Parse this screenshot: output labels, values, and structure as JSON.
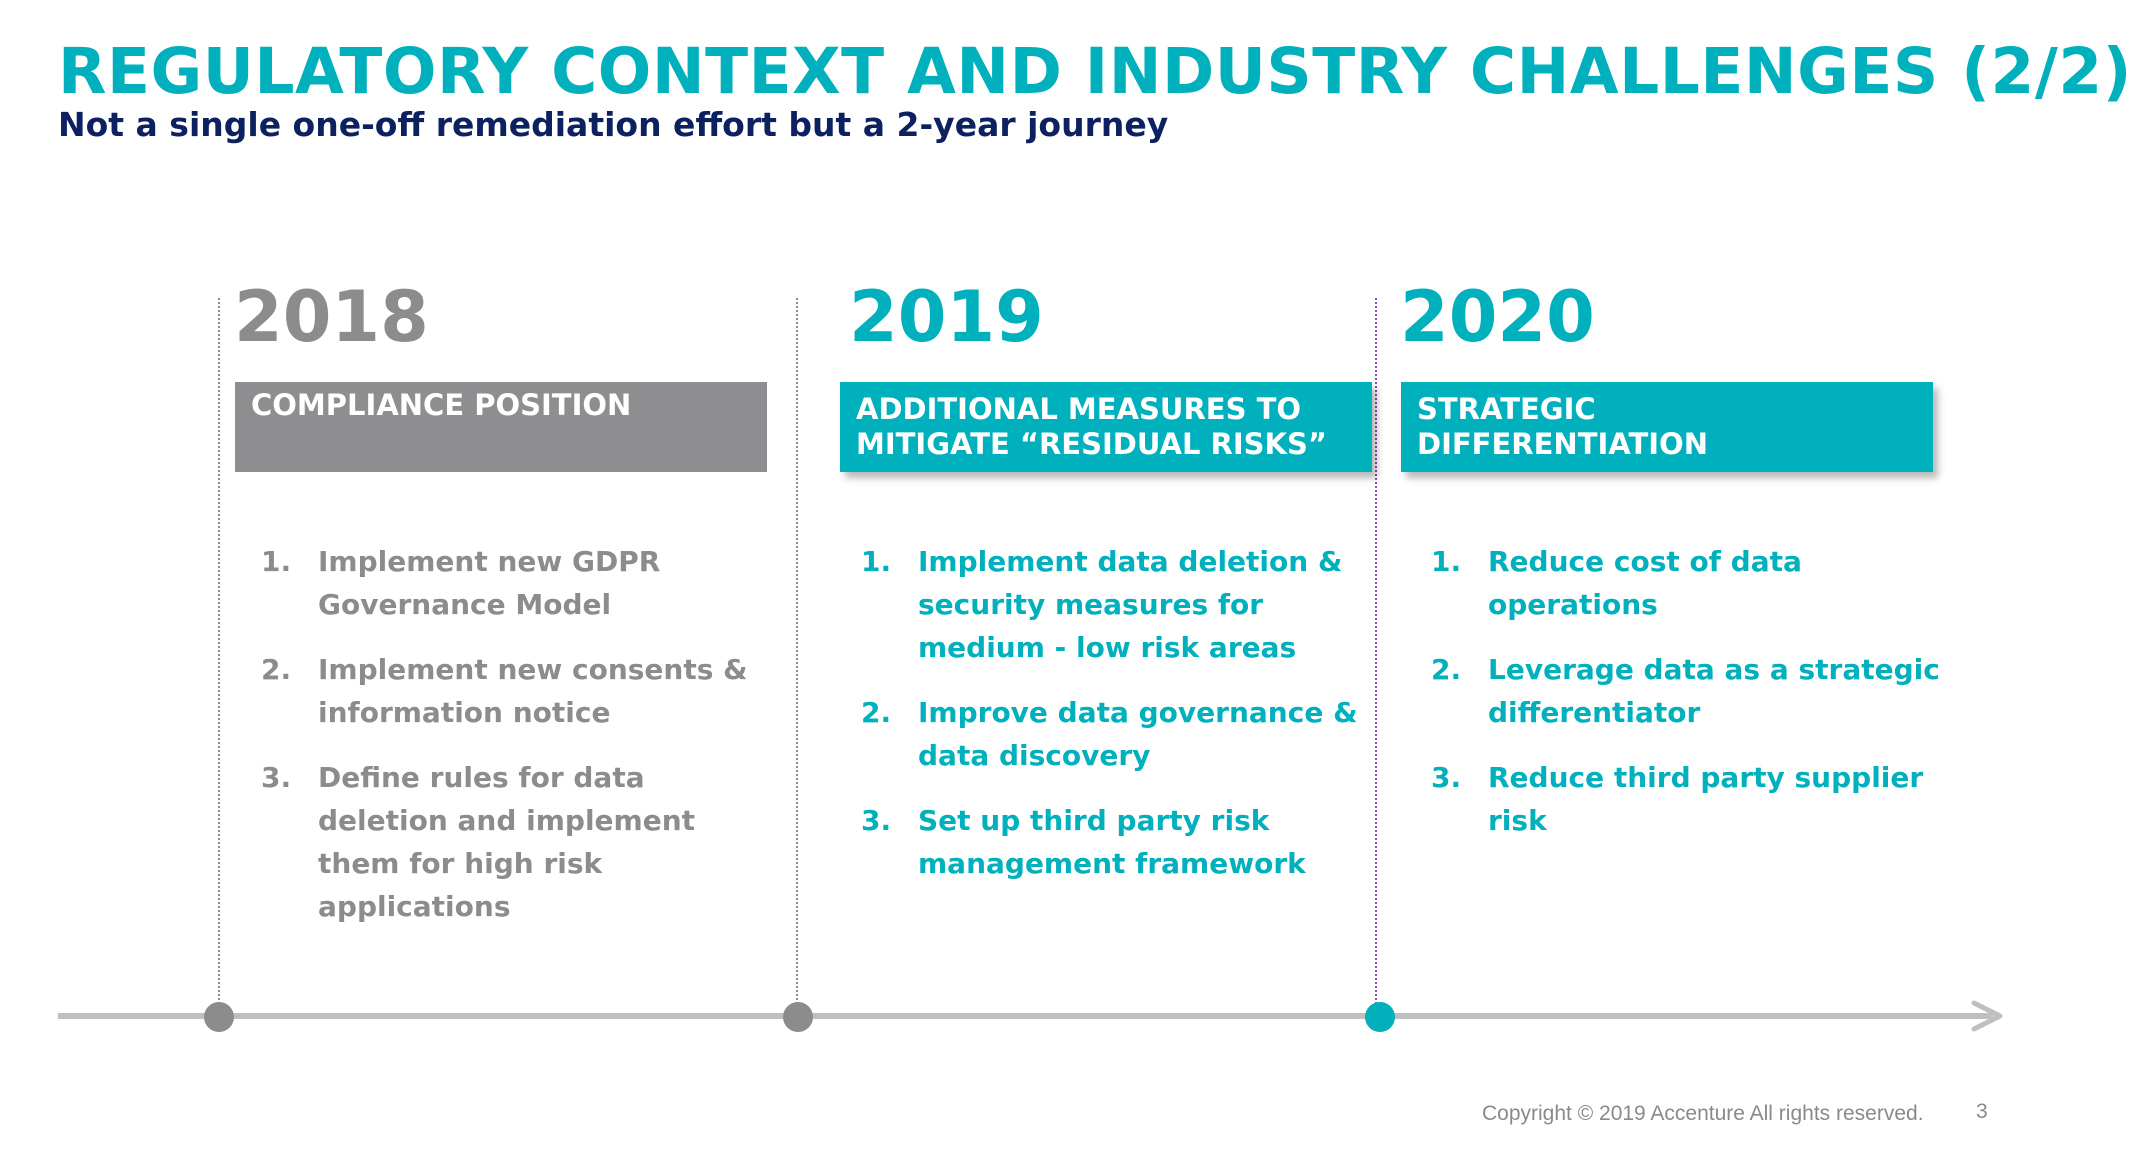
{
  "slide": {
    "title": "REGULATORY CONTEXT AND INDUSTRY CHALLENGES (2/2)",
    "subtitle": "Not a single one-off remediation effort but a 2-year journey"
  },
  "colors": {
    "teal": "#00b1bd",
    "navy": "#0d2160",
    "gray": "#8c8c8c",
    "gray_box": "#8e8e90",
    "timeline": "#bfbfbf",
    "purple_line": "#8a4cc8"
  },
  "columns": [
    {
      "year": "2018",
      "heading_lines": [
        "COMPLIANCE POSITION"
      ],
      "items": [
        {
          "num": "1.",
          "text": "Implement new GDPR Governance Model"
        },
        {
          "num": "2.",
          "text": "Implement new consents & information notice"
        },
        {
          "num": "3.",
          "text": "Define rules for data deletion and implement them for high risk applications"
        }
      ]
    },
    {
      "year": "2019",
      "heading_lines": [
        "ADDITIONAL MEASURES TO",
        "MITIGATE “RESIDUAL RISKS”"
      ],
      "items": [
        {
          "num": "1.",
          "text": "Implement data deletion & security measures for medium - low risk areas"
        },
        {
          "num": "2.",
          "text": "Improve data governance & data discovery"
        },
        {
          "num": "3.",
          "text": "Set up third party risk management framework"
        }
      ]
    },
    {
      "year": "2020",
      "heading_lines": [
        "STRATEGIC",
        "DIFFERENTIATION"
      ],
      "items": [
        {
          "num": "1.",
          "text": "Reduce cost of data operations"
        },
        {
          "num": "2.",
          "text": "Leverage data as a strategic differentiator"
        },
        {
          "num": "3.",
          "text": "Reduce third party supplier risk"
        }
      ]
    }
  ],
  "footer": {
    "copyright": "Copyright © 2019 Accenture  All rights reserved.",
    "page_number": "3"
  }
}
